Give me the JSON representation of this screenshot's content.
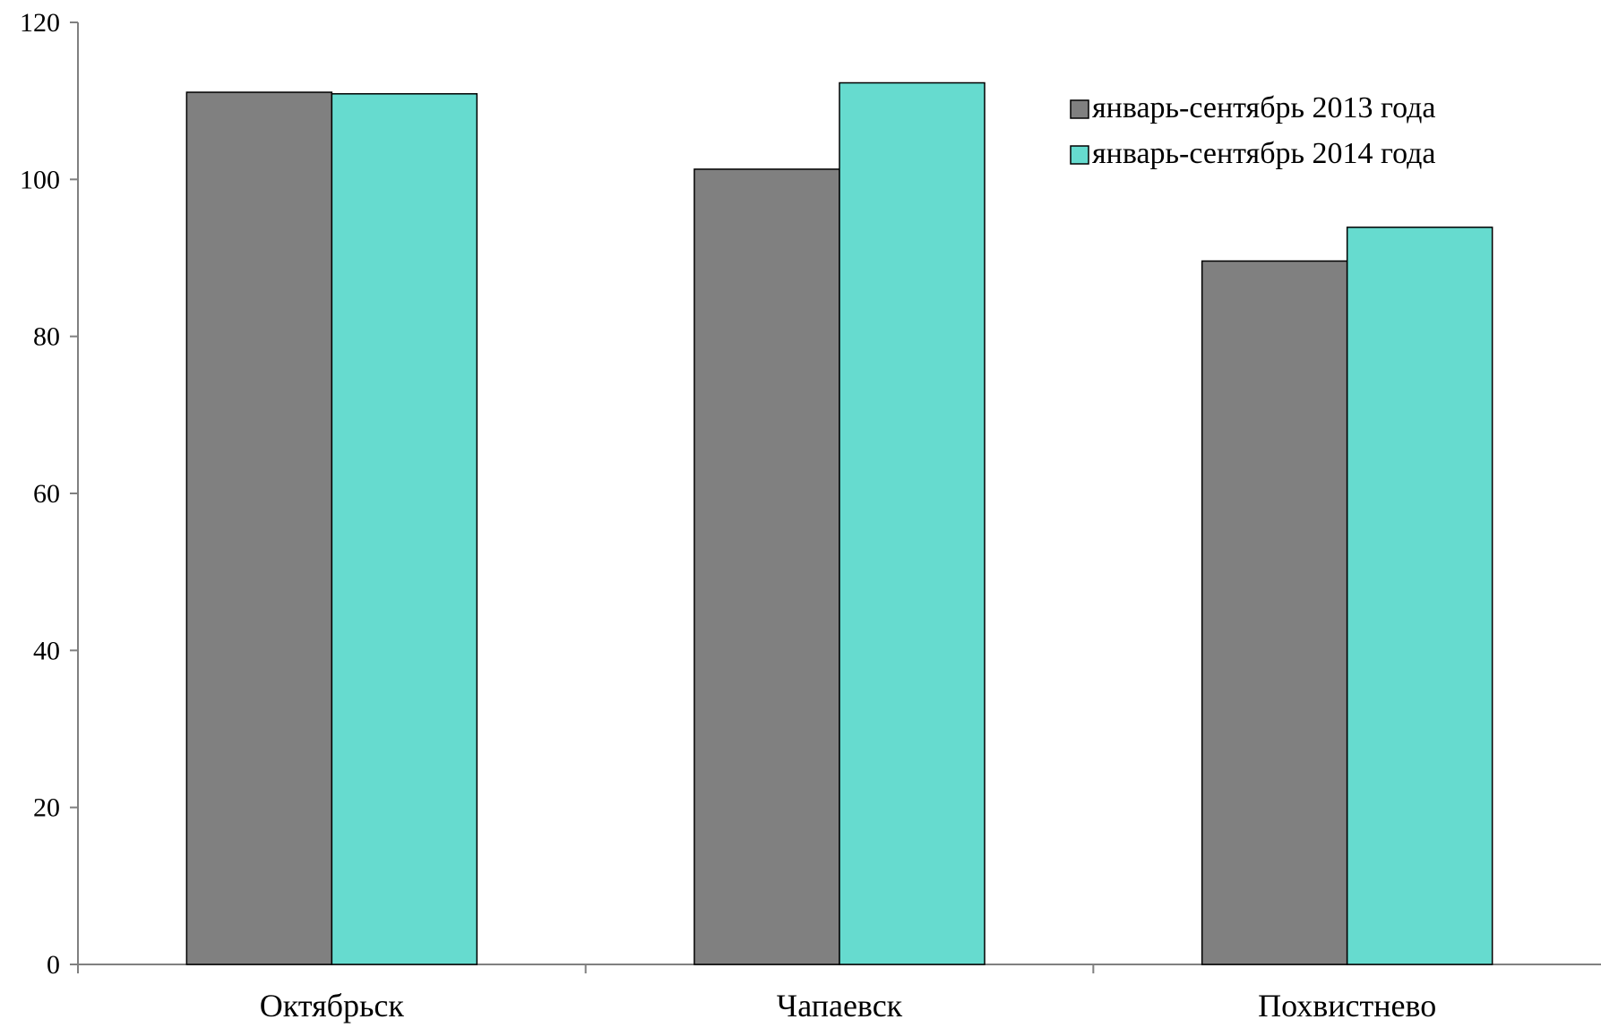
{
  "chart_data": {
    "type": "bar",
    "title": "",
    "xlabel": "",
    "ylabel": "",
    "categories": [
      "Октябрьск",
      "Чапаевск",
      "Похвистнево"
    ],
    "series": [
      {
        "name": "январь-сентябрь 2013 года",
        "color": "#808080",
        "values": [
          111.1,
          101.3,
          89.6
        ]
      },
      {
        "name": "январь-сентябрь 2014 года",
        "color": "#66dbcf",
        "values": [
          110.9,
          112.3,
          93.9
        ]
      }
    ],
    "ylim": [
      0,
      120
    ],
    "yticks": [
      0,
      20,
      40,
      60,
      80,
      100,
      120
    ],
    "grid": false,
    "legend_position": "top-right"
  }
}
